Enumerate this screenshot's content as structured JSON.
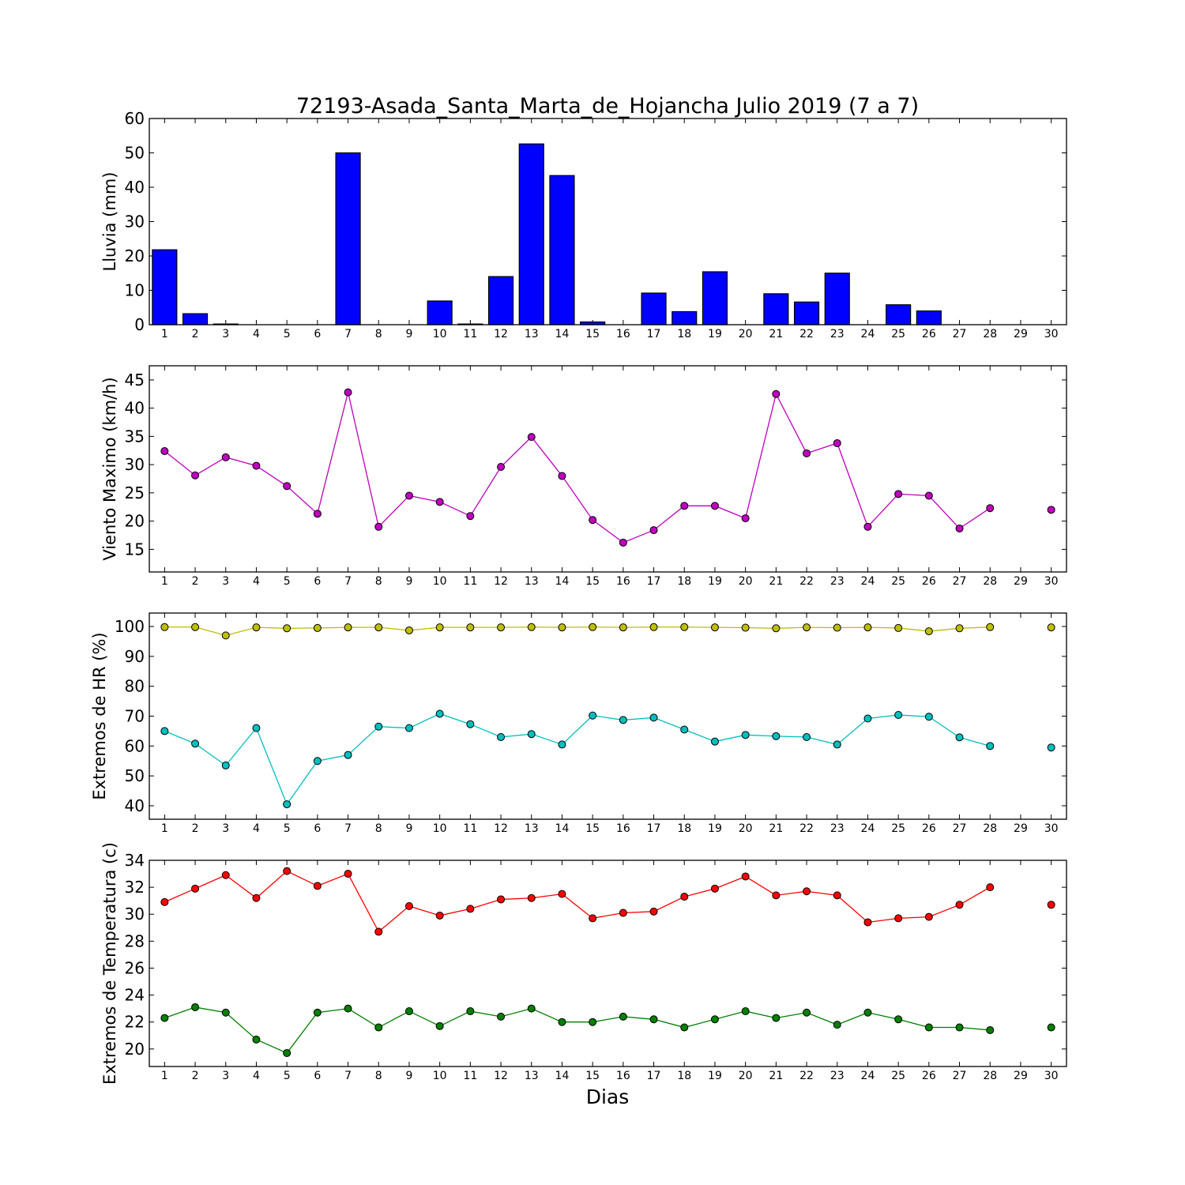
{
  "chart_data": {
    "title": "72193-Asada_Santa_Marta_de_Hojancha Julio 2019  (7 a 7)",
    "xlabel": "Dias",
    "type": "multi-panel",
    "days": [
      1,
      2,
      3,
      4,
      5,
      6,
      7,
      8,
      9,
      10,
      11,
      12,
      13,
      14,
      15,
      16,
      17,
      18,
      19,
      20,
      21,
      22,
      23,
      24,
      25,
      26,
      27,
      28,
      29,
      30
    ],
    "xlim": [
      0.5,
      30.5
    ],
    "panels": [
      {
        "type": "bar",
        "ylabel": "Lluvia (mm)",
        "ylim": [
          0,
          60
        ],
        "yticks": [
          0,
          10,
          20,
          30,
          40,
          50,
          60
        ],
        "color": "#0000ff",
        "values": [
          21.8,
          3.2,
          0.2,
          0,
          0,
          0,
          50.0,
          0,
          0,
          6.9,
          0.2,
          14.0,
          52.6,
          43.4,
          0.8,
          0,
          9.2,
          3.8,
          15.4,
          0,
          9.0,
          6.6,
          15.0,
          0,
          5.8,
          4.0,
          0,
          0,
          0,
          0
        ]
      },
      {
        "type": "line",
        "ylabel": "Viento Maximo (km/h)",
        "ylim": [
          11,
          47.5
        ],
        "yticks": [
          15,
          20,
          25,
          30,
          35,
          40,
          45
        ],
        "series": [
          {
            "color": "#bf00bf",
            "values": [
              32.4,
              28.1,
              31.3,
              29.8,
              26.2,
              21.3,
              42.8,
              19.0,
              24.5,
              23.4,
              20.9,
              29.6,
              34.9,
              28.0,
              20.2,
              16.2,
              18.4,
              22.7,
              22.7,
              20.5,
              42.5,
              32.0,
              33.8,
              19.0,
              24.8,
              24.5,
              18.7,
              22.3,
              null,
              22.0
            ]
          }
        ]
      },
      {
        "type": "line",
        "ylabel": "Extremos de HR (%)",
        "ylim": [
          35.5,
          104.5
        ],
        "yticks": [
          40,
          50,
          60,
          70,
          80,
          90,
          100
        ],
        "series": [
          {
            "color": "#bfbf00",
            "values": [
              99.8,
              99.8,
              97.0,
              99.7,
              99.4,
              99.5,
              99.7,
              99.7,
              98.7,
              99.7,
              99.7,
              99.7,
              99.8,
              99.7,
              99.8,
              99.7,
              99.8,
              99.8,
              99.7,
              99.6,
              99.4,
              99.7,
              99.6,
              99.7,
              99.5,
              98.4,
              99.4,
              99.8,
              null,
              99.7
            ]
          },
          {
            "color": "#00bfbf",
            "values": [
              65.0,
              60.8,
              53.5,
              66.0,
              40.5,
              55.0,
              57.0,
              66.5,
              66.0,
              70.8,
              67.3,
              63.0,
              64.0,
              60.5,
              70.2,
              68.7,
              69.5,
              65.5,
              61.5,
              63.7,
              63.3,
              63.0,
              60.5,
              69.2,
              70.4,
              69.8,
              62.9,
              60.0,
              null,
              59.5
            ]
          }
        ]
      },
      {
        "type": "line",
        "ylabel": "Extremos de Temperatura (c)",
        "ylim": [
          18.7,
          34.0
        ],
        "yticks": [
          20,
          22,
          24,
          26,
          28,
          30,
          32,
          34
        ],
        "series": [
          {
            "color": "#ff0000",
            "values": [
              30.9,
              31.9,
              32.9,
              31.2,
              33.2,
              32.1,
              33.0,
              28.7,
              30.6,
              29.9,
              30.4,
              31.1,
              31.2,
              31.5,
              29.7,
              30.1,
              30.2,
              31.3,
              31.9,
              32.8,
              31.4,
              31.7,
              31.4,
              29.4,
              29.7,
              29.8,
              30.7,
              32.0,
              null,
              30.7
            ]
          },
          {
            "color": "#007f00",
            "values": [
              22.3,
              23.1,
              22.7,
              20.7,
              19.7,
              22.7,
              23.0,
              21.6,
              22.8,
              21.7,
              22.8,
              22.4,
              23.0,
              22.0,
              22.0,
              22.4,
              22.2,
              21.6,
              22.2,
              22.8,
              22.3,
              22.7,
              21.8,
              22.7,
              22.2,
              21.6,
              21.6,
              21.4,
              null,
              21.6
            ]
          }
        ]
      }
    ]
  }
}
